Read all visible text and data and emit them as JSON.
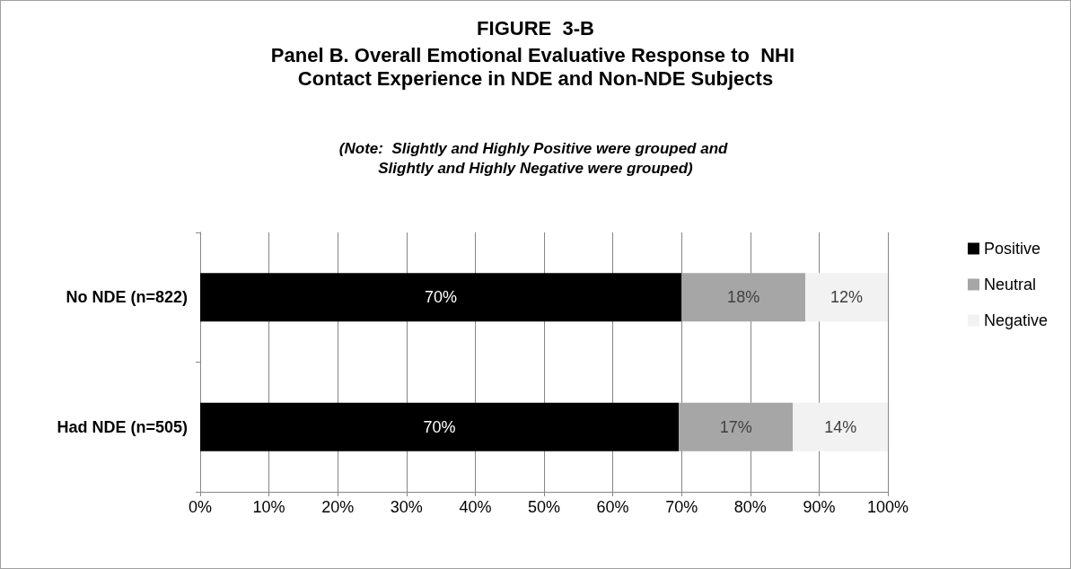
{
  "chart_data": {
    "type": "bar",
    "orientation": "horizontal",
    "stacked": true,
    "title": "FIGURE  3-B",
    "subtitle": "Panel B. Overall Emotional Evaluative Response to  NHI Contact Experience in NDE and Non-NDE Subjects",
    "annotations": [
      "(Note:  Slightly and Highly Positive were grouped and Slightly and Highly Negative were grouped)"
    ],
    "categories": [
      "No NDE (n=822)",
      "Had NDE (n=505)"
    ],
    "series": [
      {
        "name": "Positive",
        "color": "#000000",
        "values": [
          70,
          69.6
        ],
        "value_labels": [
          "70%",
          "70%"
        ]
      },
      {
        "name": "Neutral",
        "color": "#a6a6a6",
        "values": [
          18,
          16.6
        ],
        "value_labels": [
          "18%",
          "17%"
        ]
      },
      {
        "name": "Negative",
        "color": "#f2f2f2",
        "values": [
          12,
          13.8
        ],
        "value_labels": [
          "12%",
          "14%"
        ]
      }
    ],
    "xlim": [
      0,
      100
    ],
    "xticks": [
      {
        "value": 0,
        "label": "0%"
      },
      {
        "value": 10,
        "label": "10%"
      },
      {
        "value": 20,
        "label": "20%"
      },
      {
        "value": 30,
        "label": "30%"
      },
      {
        "value": 40,
        "label": "40%"
      },
      {
        "value": 50,
        "label": "50%"
      },
      {
        "value": 60,
        "label": "60%"
      },
      {
        "value": 70,
        "label": "70%"
      },
      {
        "value": 80,
        "label": "80%"
      },
      {
        "value": 90,
        "label": "90%"
      },
      {
        "value": 100,
        "label": "100%"
      }
    ],
    "grid": "x",
    "legend": "right"
  }
}
